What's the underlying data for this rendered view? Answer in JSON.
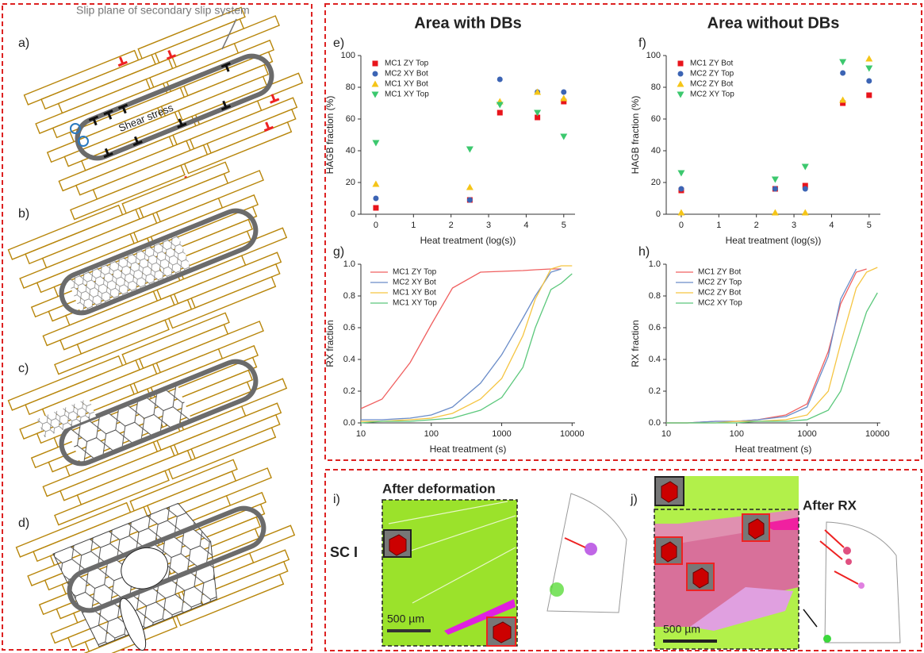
{
  "chart_data": [
    {
      "type": "scatter",
      "panel_label": "e)",
      "title": "Area with DBs",
      "x_label": "Heat treatment (log(s))",
      "y_label": "HAGB fraction (%)",
      "x": [
        0,
        2.5,
        3.3,
        4.3,
        5
      ],
      "xlim": [
        -0.4,
        5.3
      ],
      "xticks": [
        0,
        1,
        2,
        3,
        4,
        5
      ],
      "ylim": [
        0,
        100
      ],
      "yticks": [
        0,
        20,
        40,
        60,
        80,
        100
      ],
      "legend": "upper left",
      "series": [
        {
          "name": "MC1 ZY Top",
          "color": "#e8141b",
          "marker": "square",
          "values": [
            4,
            9,
            64,
            61,
            71
          ]
        },
        {
          "name": "MC2 XY Bot",
          "color": "#3c64b4",
          "marker": "circle",
          "values": [
            10,
            9,
            85,
            77,
            77
          ]
        },
        {
          "name": "MC1 XY Bot",
          "color": "#f5c518",
          "marker": "triangle",
          "values": [
            19,
            17,
            71,
            77,
            73
          ]
        },
        {
          "name": "MC1 XY Top",
          "color": "#3cc86e",
          "marker": "down-triangle",
          "values": [
            45,
            41,
            69,
            64,
            49
          ]
        }
      ]
    },
    {
      "type": "scatter",
      "panel_label": "f)",
      "title": "Area without DBs",
      "x_label": "Heat treatment (log(s))",
      "y_label": "HAGB fraction (%)",
      "x": [
        0,
        2.5,
        3.3,
        4.3,
        5
      ],
      "xlim": [
        -0.4,
        5.3
      ],
      "xticks": [
        0,
        1,
        2,
        3,
        4,
        5
      ],
      "ylim": [
        0,
        100
      ],
      "yticks": [
        0,
        20,
        40,
        60,
        80,
        100
      ],
      "legend": "upper left",
      "series": [
        {
          "name": "MC1 ZY Bot",
          "color": "#e8141b",
          "marker": "square",
          "values": [
            15,
            16,
            18,
            70,
            75
          ]
        },
        {
          "name": "MC2 ZY Top",
          "color": "#3c64b4",
          "marker": "circle",
          "values": [
            16,
            16,
            16,
            89,
            84
          ]
        },
        {
          "name": "MC2 ZY Bot",
          "color": "#f5c518",
          "marker": "triangle",
          "values": [
            1,
            1,
            1,
            72,
            98
          ]
        },
        {
          "name": "MC2 XY Top",
          "color": "#3cc86e",
          "marker": "down-triangle",
          "values": [
            26,
            22,
            30,
            96,
            92
          ]
        }
      ]
    },
    {
      "type": "line",
      "panel_label": "g)",
      "x_label": "Heat treatment (s)",
      "y_label": "RX fraction",
      "x": [
        10,
        20,
        50,
        100,
        200,
        500,
        1000,
        2000,
        3000,
        5000,
        7000,
        10000
      ],
      "xscale": "log",
      "xlim": [
        10,
        11000
      ],
      "xticks": [
        10,
        100,
        1000,
        10000
      ],
      "ylim": [
        0,
        1
      ],
      "yticks": [
        {
          "value": 0,
          "label": "0.0"
        },
        0.2,
        0.4,
        0.6,
        0.8,
        {
          "value": 1,
          "label": "1.0"
        }
      ],
      "legend": "upper left",
      "series": [
        {
          "name": "MC1 ZY Top",
          "color": "#f06060",
          "values": [
            0.09,
            0.15,
            0.38,
            0.62,
            0.85,
            0.95,
            0.955,
            0.96,
            0.965,
            0.97,
            0.97,
            null
          ]
        },
        {
          "name": "MC2 XY Bot",
          "color": "#6a8cc8",
          "values": [
            0.02,
            0.02,
            0.03,
            0.05,
            0.1,
            0.25,
            0.43,
            0.66,
            0.8,
            0.95,
            0.97,
            null
          ]
        },
        {
          "name": "MC1 XY Bot",
          "color": "#f5c542",
          "values": [
            0.01,
            0.01,
            0.02,
            0.03,
            0.06,
            0.15,
            0.28,
            0.55,
            0.78,
            0.97,
            0.99,
            0.99
          ]
        },
        {
          "name": "MC1 XY Top",
          "color": "#5cc87c",
          "values": [
            0,
            0.01,
            0.01,
            0.02,
            0.03,
            0.08,
            0.16,
            0.35,
            0.6,
            0.84,
            0.88,
            0.94
          ]
        }
      ]
    },
    {
      "type": "line",
      "panel_label": "h)",
      "x_label": "Heat treatment (s)",
      "y_label": "RX fraction",
      "x": [
        10,
        20,
        50,
        100,
        200,
        500,
        1000,
        2000,
        3000,
        5000,
        7000,
        10000
      ],
      "xscale": "log",
      "xlim": [
        10,
        11000
      ],
      "xticks": [
        10,
        100,
        1000,
        10000
      ],
      "ylim": [
        0,
        1
      ],
      "yticks": [
        {
          "value": 0,
          "label": "0.0"
        },
        0.2,
        0.4,
        0.6,
        0.8,
        {
          "value": 1,
          "label": "1.0"
        }
      ],
      "legend": "upper left",
      "series": [
        {
          "name": "MC1 ZY Bot",
          "color": "#f06060",
          "values": [
            0,
            0,
            0.01,
            0.01,
            0.02,
            0.05,
            0.12,
            0.45,
            0.75,
            0.95,
            0.97,
            null
          ]
        },
        {
          "name": "MC2 ZY Top",
          "color": "#6a8cc8",
          "values": [
            0,
            0,
            0.01,
            0.01,
            0.02,
            0.04,
            0.1,
            0.42,
            0.78,
            0.97,
            null,
            null
          ]
        },
        {
          "name": "MC2 ZY Bot",
          "color": "#f5c542",
          "values": [
            0,
            0,
            0,
            0.01,
            0.01,
            0.02,
            0.05,
            0.2,
            0.5,
            0.85,
            0.95,
            0.98
          ]
        },
        {
          "name": "MC2 XY Top",
          "color": "#5cc87c",
          "values": [
            0,
            0,
            0,
            0,
            0.01,
            0.01,
            0.02,
            0.08,
            0.2,
            0.5,
            0.7,
            0.82
          ]
        }
      ]
    }
  ],
  "schematic": {
    "panel_labels": [
      "a)",
      "b)",
      "c)",
      "d)"
    ],
    "slip_plane_label": "Slip plane of secondary slip system",
    "shear_label": "Shear stress"
  },
  "micrographs": {
    "i": {
      "panel_label": "i)",
      "title": "After deformation",
      "sample": "SC I",
      "scale_bar": "500 µm"
    },
    "j": {
      "panel_label": "j)",
      "title": "After RX",
      "scale_bar": "500 µm"
    }
  }
}
